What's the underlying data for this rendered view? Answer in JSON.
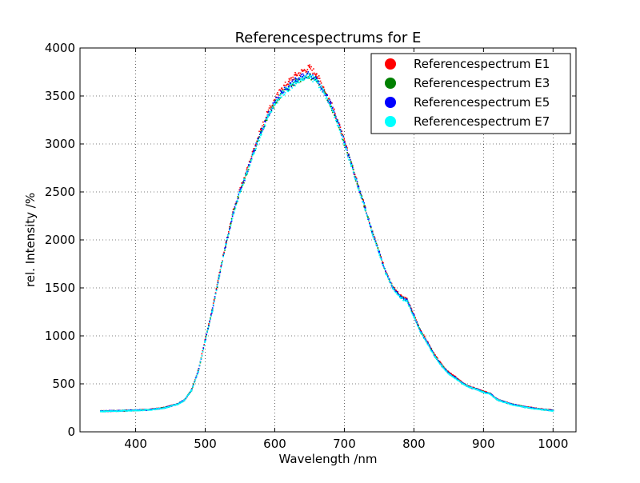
{
  "chart_data": {
    "type": "scatter",
    "title": "Referencespectrums for E",
    "xlabel": "Wavelength  /nm",
    "ylabel": "rel. Intensity  /%",
    "xlim": [
      320,
      1033
    ],
    "ylim": [
      0,
      4000
    ],
    "x_ticks": [
      400,
      500,
      600,
      700,
      800,
      900,
      1000
    ],
    "y_ticks": [
      0,
      500,
      1000,
      1500,
      2000,
      2500,
      3000,
      3500,
      4000
    ],
    "grid": true,
    "legend_position": "top-right",
    "x_range": [
      350,
      1000
    ],
    "series": [
      {
        "name": "Referencespectrum E1",
        "color": "#ff0000",
        "x": [
          350,
          380,
          400,
          420,
          440,
          460,
          470,
          480,
          490,
          500,
          510,
          520,
          530,
          540,
          550,
          560,
          570,
          580,
          590,
          600,
          610,
          620,
          630,
          640,
          650,
          660,
          670,
          680,
          690,
          700,
          710,
          720,
          730,
          740,
          750,
          760,
          770,
          780,
          790,
          800,
          810,
          820,
          830,
          840,
          850,
          860,
          870,
          880,
          890,
          900,
          910,
          920,
          940,
          960,
          980,
          1000
        ],
        "values": [
          215,
          220,
          225,
          232,
          250,
          290,
          330,
          430,
          640,
          960,
          1270,
          1630,
          1970,
          2290,
          2520,
          2730,
          2950,
          3150,
          3330,
          3460,
          3580,
          3650,
          3720,
          3760,
          3800,
          3730,
          3590,
          3440,
          3250,
          3030,
          2800,
          2560,
          2340,
          2090,
          1880,
          1660,
          1510,
          1420,
          1380,
          1220,
          1050,
          930,
          800,
          700,
          620,
          570,
          510,
          470,
          450,
          420,
          400,
          340,
          290,
          260,
          240,
          225
        ]
      },
      {
        "name": "Referencespectrum E3",
        "color": "#008000",
        "x": [
          350,
          380,
          400,
          420,
          440,
          460,
          470,
          480,
          490,
          500,
          510,
          520,
          530,
          540,
          550,
          560,
          570,
          580,
          590,
          600,
          610,
          620,
          630,
          640,
          650,
          660,
          670,
          680,
          690,
          700,
          710,
          720,
          730,
          740,
          750,
          760,
          770,
          780,
          790,
          800,
          810,
          820,
          830,
          840,
          850,
          860,
          870,
          880,
          890,
          900,
          910,
          920,
          940,
          960,
          980,
          1000
        ],
        "values": [
          215,
          220,
          225,
          230,
          248,
          288,
          330,
          430,
          630,
          950,
          1260,
          1620,
          1960,
          2270,
          2500,
          2700,
          2910,
          3110,
          3290,
          3420,
          3530,
          3590,
          3650,
          3690,
          3710,
          3670,
          3550,
          3410,
          3230,
          3010,
          2790,
          2550,
          2330,
          2080,
          1870,
          1650,
          1500,
          1410,
          1370,
          1210,
          1040,
          920,
          790,
          690,
          610,
          560,
          505,
          465,
          445,
          415,
          395,
          335,
          288,
          258,
          238,
          222
        ]
      },
      {
        "name": "Referencespectrum E5",
        "color": "#0000ff",
        "x": [
          350,
          380,
          400,
          420,
          440,
          460,
          470,
          480,
          490,
          500,
          510,
          520,
          530,
          540,
          550,
          560,
          570,
          580,
          590,
          600,
          610,
          620,
          630,
          640,
          650,
          660,
          670,
          680,
          690,
          700,
          710,
          720,
          730,
          740,
          750,
          760,
          770,
          780,
          790,
          800,
          810,
          820,
          830,
          840,
          850,
          860,
          870,
          880,
          890,
          900,
          910,
          920,
          940,
          960,
          980,
          1000
        ],
        "values": [
          215,
          220,
          225,
          230,
          248,
          288,
          330,
          430,
          630,
          950,
          1260,
          1620,
          1960,
          2270,
          2500,
          2710,
          2920,
          3120,
          3300,
          3430,
          3540,
          3600,
          3660,
          3700,
          3730,
          3680,
          3560,
          3420,
          3240,
          3020,
          2790,
          2550,
          2330,
          2080,
          1870,
          1650,
          1500,
          1410,
          1370,
          1210,
          1040,
          920,
          790,
          690,
          610,
          560,
          505,
          465,
          445,
          415,
          395,
          335,
          288,
          258,
          238,
          222
        ]
      },
      {
        "name": "Referencespectrum E7",
        "color": "#00ffff",
        "x": [
          350,
          380,
          400,
          420,
          440,
          460,
          470,
          480,
          490,
          500,
          510,
          520,
          530,
          540,
          550,
          560,
          570,
          580,
          590,
          600,
          610,
          620,
          630,
          640,
          650,
          660,
          670,
          680,
          690,
          700,
          710,
          720,
          730,
          740,
          750,
          760,
          770,
          780,
          790,
          800,
          810,
          820,
          830,
          840,
          850,
          860,
          870,
          880,
          890,
          900,
          910,
          920,
          940,
          960,
          980,
          1000
        ],
        "values": [
          213,
          218,
          223,
          229,
          246,
          285,
          328,
          428,
          628,
          945,
          1255,
          1615,
          1955,
          2265,
          2495,
          2700,
          2900,
          3100,
          3280,
          3410,
          3520,
          3580,
          3640,
          3680,
          3700,
          3660,
          3540,
          3400,
          3220,
          3000,
          2780,
          2540,
          2320,
          2070,
          1860,
          1640,
          1490,
          1400,
          1360,
          1200,
          1030,
          910,
          785,
          685,
          605,
          555,
          500,
          462,
          442,
          412,
          392,
          332,
          285,
          255,
          235,
          220
        ]
      }
    ]
  }
}
